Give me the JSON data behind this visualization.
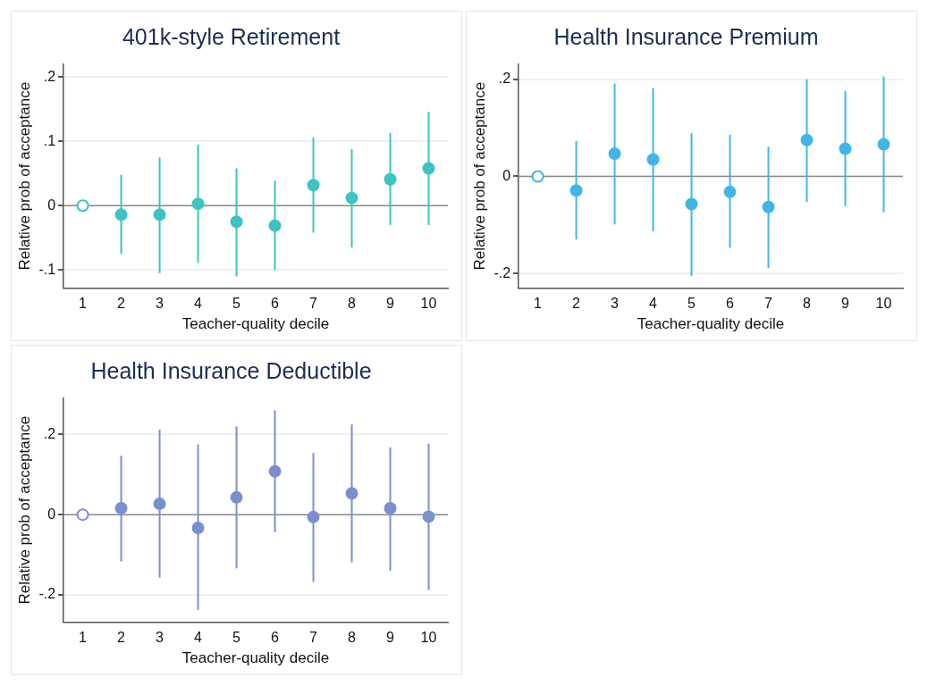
{
  "chart_data": [
    {
      "type": "scatter",
      "title": "401k-style Retirement",
      "xlabel": "Teacher-quality decile",
      "ylabel": "Relative prob of acceptance",
      "categories": [
        "1",
        "2",
        "3",
        "4",
        "5",
        "6",
        "7",
        "8",
        "9",
        "10"
      ],
      "series": [
        {
          "color": "#3cc4c0",
          "values": [
            0,
            -0.014,
            -0.014,
            0.003,
            -0.025,
            -0.031,
            0.032,
            0.012,
            0.041,
            0.058
          ],
          "errors": [
            null,
            [
              -0.075,
              0.048
            ],
            [
              -0.105,
              0.075
            ],
            [
              -0.089,
              0.095
            ],
            [
              -0.11,
              0.058
            ],
            [
              -0.1,
              0.039
            ],
            [
              -0.042,
              0.106
            ],
            [
              -0.065,
              0.088
            ],
            [
              -0.03,
              0.113
            ],
            [
              -0.03,
              0.146
            ]
          ]
        }
      ],
      "ylim": [
        -0.128,
        0.22
      ],
      "yticks": [
        {
          "value": -0.1,
          "label": "-.1"
        },
        {
          "value": 0,
          "label": "0"
        },
        {
          "value": 0.1,
          "label": ".1"
        },
        {
          "value": 0.2,
          "label": ".2"
        }
      ],
      "grid": "y",
      "marker": "circle",
      "legend": false,
      "ref_lines": [
        {
          "axis": "y",
          "value": 0,
          "color": "#8c8c8c"
        }
      ]
    },
    {
      "type": "scatter",
      "title": "Health Insurance Premium",
      "xlabel": "Teacher-quality decile",
      "ylabel": "Relative prob of acceptance",
      "categories": [
        "1",
        "2",
        "3",
        "4",
        "5",
        "6",
        "7",
        "8",
        "9",
        "10"
      ],
      "series": [
        {
          "color": "#41b6e6",
          "values": [
            0,
            -0.029,
            0.047,
            0.035,
            -0.057,
            -0.032,
            -0.063,
            0.075,
            0.057,
            0.066
          ],
          "errors": [
            null,
            [
              -0.13,
              0.073
            ],
            [
              -0.099,
              0.191
            ],
            [
              -0.113,
              0.182
            ],
            [
              -0.205,
              0.089
            ],
            [
              -0.147,
              0.086
            ],
            [
              -0.189,
              0.061
            ],
            [
              -0.053,
              0.2
            ],
            [
              -0.061,
              0.176
            ],
            [
              -0.074,
              0.206
            ]
          ]
        }
      ],
      "ylim": [
        -0.23,
        0.231
      ],
      "yticks": [
        {
          "value": -0.2,
          "label": "-.2"
        },
        {
          "value": 0,
          "label": "0"
        },
        {
          "value": 0.2,
          "label": ".2"
        }
      ],
      "grid": "y",
      "marker": "circle",
      "legend": false,
      "ref_lines": [
        {
          "axis": "y",
          "value": 0,
          "color": "#8c8c8c"
        }
      ]
    },
    {
      "type": "scatter",
      "title": "Health Insurance Deductible",
      "xlabel": "Teacher-quality decile",
      "ylabel": "Relative prob of acceptance",
      "categories": [
        "1",
        "2",
        "3",
        "4",
        "5",
        "6",
        "7",
        "8",
        "9",
        "10"
      ],
      "series": [
        {
          "color": "#7b8fd0",
          "values": [
            0,
            0.016,
            0.027,
            -0.033,
            0.043,
            0.108,
            -0.006,
            0.053,
            0.016,
            -0.005
          ],
          "errors": [
            null,
            [
              -0.117,
              0.147
            ],
            [
              -0.157,
              0.212
            ],
            [
              -0.238,
              0.175
            ],
            [
              -0.134,
              0.22
            ],
            [
              -0.044,
              0.26
            ],
            [
              -0.168,
              0.154
            ],
            [
              -0.119,
              0.225
            ],
            [
              -0.14,
              0.168
            ],
            [
              -0.188,
              0.177
            ]
          ]
        }
      ],
      "ylim": [
        -0.268,
        0.29
      ],
      "yticks": [
        {
          "value": -0.2,
          "label": "-.2"
        },
        {
          "value": 0,
          "label": "0"
        },
        {
          "value": 0.2,
          "label": ".2"
        }
      ],
      "grid": "y",
      "marker": "circle",
      "legend": false,
      "ref_lines": [
        {
          "axis": "y",
          "value": 0,
          "color": "#8c8c8c"
        }
      ]
    }
  ]
}
